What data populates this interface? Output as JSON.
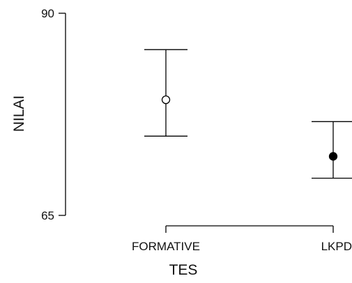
{
  "chart_data": {
    "type": "errorbar",
    "xlabel": "TES",
    "ylabel": "NILAI",
    "categories": [
      "FORMATIVE",
      "LKPD"
    ],
    "means": [
      79.3,
      72.3
    ],
    "lower": [
      74.8,
      69.6
    ],
    "upper": [
      85.5,
      76.6
    ],
    "marker_fill": [
      "#ffffff",
      "#000000"
    ],
    "ylim": [
      65,
      90
    ],
    "yticks": [
      65,
      90
    ],
    "grid": false
  }
}
